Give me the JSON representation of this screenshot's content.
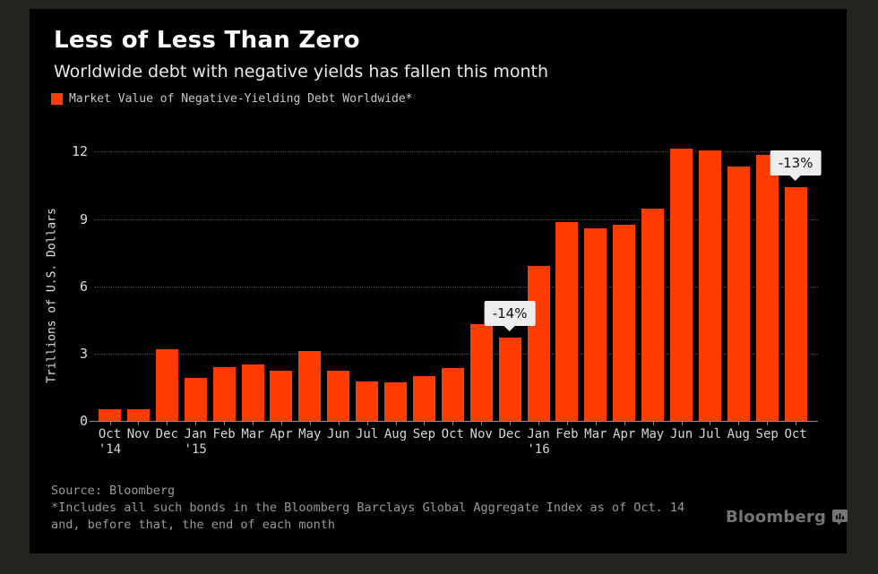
{
  "header": {
    "title": "Less of Less Than Zero",
    "subtitle": "Worldwide debt with negative yields has fallen this month"
  },
  "legend": {
    "label": "Market Value of Negative-Yielding Debt Worldwide*"
  },
  "chart_data": {
    "type": "bar",
    "title": "Less of Less Than Zero",
    "subtitle": "Worldwide debt with negative yields has fallen this month",
    "series_name": "Market Value of Negative-Yielding Debt Worldwide*",
    "ylabel": "Trillions of U.S. Dollars",
    "xlabel": "",
    "ylim": [
      0,
      12
    ],
    "yticks": [
      0,
      3,
      6,
      9,
      12
    ],
    "grid": "horizontal-dotted",
    "legend_position": "top-left",
    "categories": [
      "Oct",
      "Nov",
      "Dec",
      "Jan",
      "Feb",
      "Mar",
      "Apr",
      "May",
      "Jun",
      "Jul",
      "Aug",
      "Sep",
      "Oct",
      "Nov",
      "Dec",
      "Jan",
      "Feb",
      "Mar",
      "Apr",
      "May",
      "Jun",
      "Jul",
      "Aug",
      "Sep",
      "Oct"
    ],
    "year_labels": [
      {
        "index": 0,
        "label": "'14"
      },
      {
        "index": 3,
        "label": "'15"
      },
      {
        "index": 15,
        "label": "'16"
      }
    ],
    "values": [
      0.5,
      0.5,
      3.2,
      1.9,
      2.4,
      2.5,
      2.25,
      3.1,
      2.25,
      1.75,
      1.7,
      2.0,
      2.35,
      4.3,
      3.7,
      6.9,
      8.85,
      8.6,
      8.75,
      9.45,
      12.15,
      12.05,
      11.35,
      11.85,
      10.4
    ],
    "callouts": [
      {
        "index": 14,
        "label": "-14%"
      },
      {
        "index": 24,
        "label": "-13%"
      }
    ]
  },
  "footer": {
    "source": "Source: Bloomberg",
    "note_line1": "*Includes all such bonds in the Bloomberg Barclays Global Aggregate Index as of Oct. 14",
    "note_line2": "and, before that, the end of each month"
  },
  "logo": {
    "text": "Bloomberg"
  },
  "colors": {
    "accent": "#ff3c00",
    "panel_bg": "#000000",
    "outer_bg": "#242320",
    "callout_bg": "#ededed",
    "grid": "#4c4c4c",
    "axis": "#8f8f8f"
  }
}
